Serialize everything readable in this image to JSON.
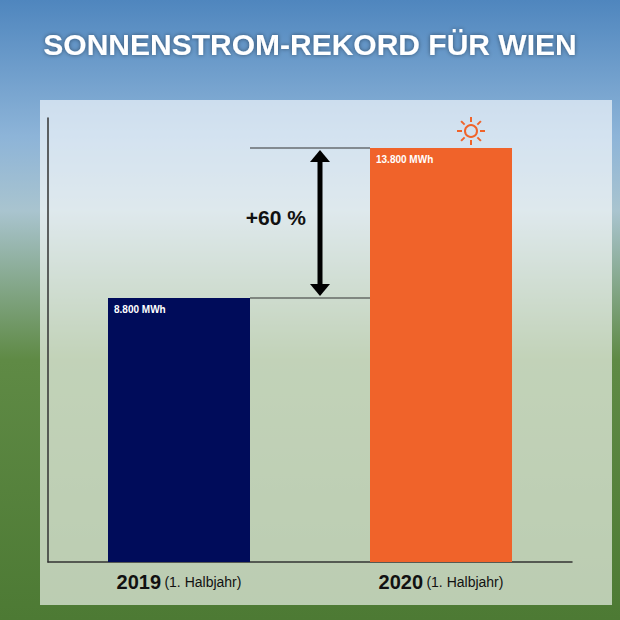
{
  "chart_data": {
    "type": "bar",
    "title": "SONNENSTROM-REKORD FÜR WIEN",
    "categories": [
      "2019 (1. Halbjahr)",
      "2020 (1. Halbjahr)"
    ],
    "values": [
      8800,
      13800
    ],
    "value_labels": [
      "8.800 MWh",
      "13.800 MWh"
    ],
    "colors": [
      "#000c5a",
      "#f0632a"
    ],
    "annotation": "+60 %",
    "ylim": [
      0,
      14800
    ],
    "yticks": [],
    "tick_labels": "x",
    "data_labels": true,
    "grid": false
  }
}
